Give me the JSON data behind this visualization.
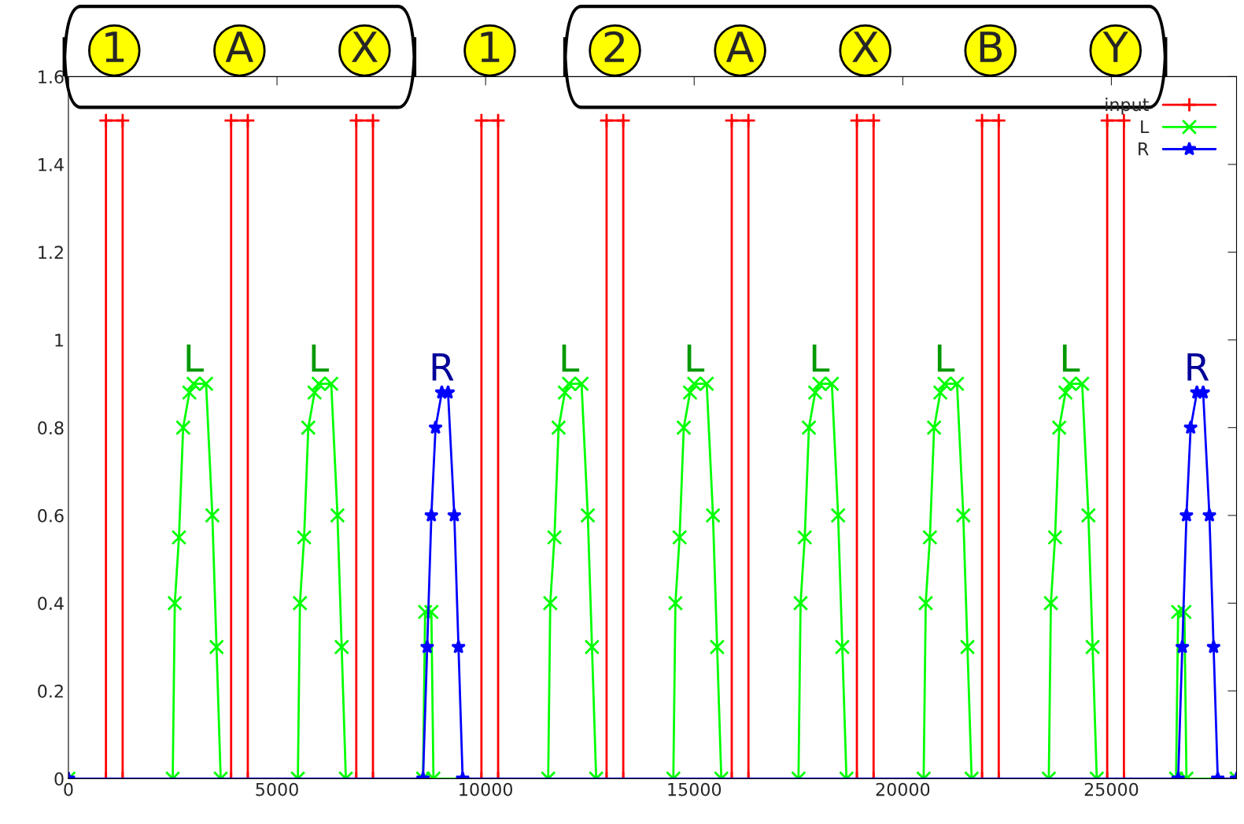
{
  "chart_data": {
    "type": "line",
    "series": [
      {
        "name": "input",
        "color": "#ff0000",
        "marker": "plus",
        "x": [
          0,
          900,
          900,
          1300,
          1300,
          3900,
          3900,
          4300,
          4300,
          6900,
          6900,
          7300,
          7300,
          9900,
          9900,
          10300,
          10300,
          12900,
          12900,
          13300,
          13300,
          15900,
          15900,
          16300,
          16300,
          18900,
          18900,
          19300,
          19300,
          21900,
          21900,
          22300,
          22300,
          24900,
          24900,
          25300,
          25300,
          28000
        ],
        "values": [
          0,
          0,
          1.5,
          1.5,
          0,
          0,
          1.5,
          1.5,
          0,
          0,
          1.5,
          1.5,
          0,
          0,
          1.5,
          1.5,
          0,
          0,
          1.5,
          1.5,
          0,
          0,
          1.5,
          1.5,
          0,
          0,
          1.5,
          1.5,
          0,
          0,
          1.5,
          1.5,
          0,
          0,
          1.5,
          1.5,
          0,
          0
        ]
      },
      {
        "name": "L",
        "color": "#00ff00",
        "marker": "cross",
        "x": [
          0,
          2500,
          2550,
          2650,
          2750,
          2900,
          3000,
          3300,
          3450,
          3550,
          3650,
          5500,
          5550,
          5650,
          5750,
          5900,
          6000,
          6300,
          6450,
          6550,
          6650,
          8500,
          8550,
          8700,
          8750,
          11500,
          11550,
          11650,
          11750,
          11900,
          12000,
          12300,
          12450,
          12550,
          12650,
          14500,
          14550,
          14650,
          14750,
          14900,
          15000,
          15300,
          15450,
          15550,
          15650,
          17500,
          17550,
          17650,
          17750,
          17900,
          18000,
          18300,
          18450,
          18550,
          18650,
          20500,
          20550,
          20650,
          20750,
          20900,
          21000,
          21300,
          21450,
          21550,
          21650,
          23500,
          23550,
          23650,
          23750,
          23900,
          24000,
          24300,
          24450,
          24550,
          24650,
          26550,
          26600,
          26750,
          26800,
          28000
        ],
        "values": [
          0,
          0,
          0.4,
          0.55,
          0.8,
          0.88,
          0.9,
          0.9,
          0.6,
          0.3,
          0,
          0,
          0.4,
          0.55,
          0.8,
          0.88,
          0.9,
          0.9,
          0.6,
          0.3,
          0,
          0,
          0.38,
          0.38,
          0,
          0,
          0.4,
          0.55,
          0.8,
          0.88,
          0.9,
          0.9,
          0.6,
          0.3,
          0,
          0,
          0.4,
          0.55,
          0.8,
          0.88,
          0.9,
          0.9,
          0.6,
          0.3,
          0,
          0,
          0.4,
          0.55,
          0.8,
          0.88,
          0.9,
          0.9,
          0.6,
          0.3,
          0,
          0,
          0.4,
          0.55,
          0.8,
          0.88,
          0.9,
          0.9,
          0.6,
          0.3,
          0,
          0,
          0.4,
          0.55,
          0.8,
          0.88,
          0.9,
          0.9,
          0.6,
          0.3,
          0,
          0,
          0.38,
          0.38,
          0,
          0
        ]
      },
      {
        "name": "R",
        "color": "#0000ff",
        "marker": "star",
        "x": [
          0,
          8500,
          8600,
          8700,
          8800,
          8950,
          9100,
          9250,
          9350,
          9450,
          26600,
          26700,
          26800,
          26900,
          27050,
          27200,
          27350,
          27450,
          27550,
          28000
        ],
        "values": [
          0,
          0,
          0.3,
          0.6,
          0.8,
          0.88,
          0.88,
          0.6,
          0.3,
          0,
          0,
          0.3,
          0.6,
          0.8,
          0.88,
          0.88,
          0.6,
          0.3,
          0,
          0
        ]
      }
    ],
    "xlim": [
      0,
      28000
    ],
    "xticks": [
      0,
      5000,
      10000,
      15000,
      20000,
      25000
    ],
    "ylim": [
      0,
      1.6
    ],
    "yticks": [
      0,
      0.2,
      0.4,
      0.6,
      0.8,
      1,
      1.2,
      1.4,
      1.6
    ],
    "legend": "top right",
    "grid": false,
    "line_style": "solid",
    "annotations": [
      {
        "text": "1",
        "x": 1100,
        "y": 1.5
      },
      {
        "text": "A",
        "x": 4100,
        "y": 1.5
      },
      {
        "text": "X",
        "x": 7100,
        "y": 1.5
      },
      {
        "text": "1",
        "x": 10100,
        "y": 1.5
      },
      {
        "text": "2",
        "x": 13100,
        "y": 1.5
      },
      {
        "text": "A",
        "x": 16100,
        "y": 1.5
      },
      {
        "text": "X",
        "x": 19100,
        "y": 1.5
      },
      {
        "text": "B",
        "x": 22100,
        "y": 1.5
      },
      {
        "text": "Y",
        "x": 25100,
        "y": 1.5
      },
      {
        "text": "L",
        "x": 3000,
        "y": 0.9
      },
      {
        "text": "L",
        "x": 6000,
        "y": 0.9
      },
      {
        "text": "R",
        "x": 8950,
        "y": 0.88
      },
      {
        "text": "L",
        "x": 12000,
        "y": 0.9
      },
      {
        "text": "L",
        "x": 15000,
        "y": 0.9
      },
      {
        "text": "L",
        "x": 18000,
        "y": 0.9
      },
      {
        "text": "L",
        "x": 21000,
        "y": 0.9
      },
      {
        "text": "L",
        "x": 24000,
        "y": 0.9
      },
      {
        "text": "R",
        "x": 27050,
        "y": 0.88
      }
    ]
  }
}
